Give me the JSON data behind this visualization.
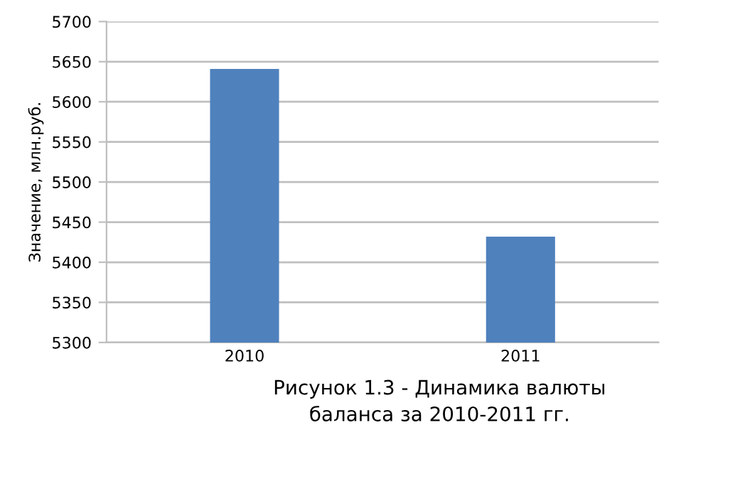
{
  "chart_data": {
    "type": "bar",
    "ylabel": "Значение, млн.руб.",
    "categories": [
      "2010",
      "2011"
    ],
    "values": [
      5641,
      5432
    ],
    "color": "#4f81bd",
    "ylim": [
      5300,
      5700
    ],
    "yticks": [
      5300,
      5350,
      5400,
      5450,
      5500,
      5550,
      5600,
      5650,
      5700
    ],
    "grid": "y",
    "annotations": [
      "Рисунок 1.3 - Динамика валюты\nбаланса за 2010-2011 гг."
    ]
  }
}
